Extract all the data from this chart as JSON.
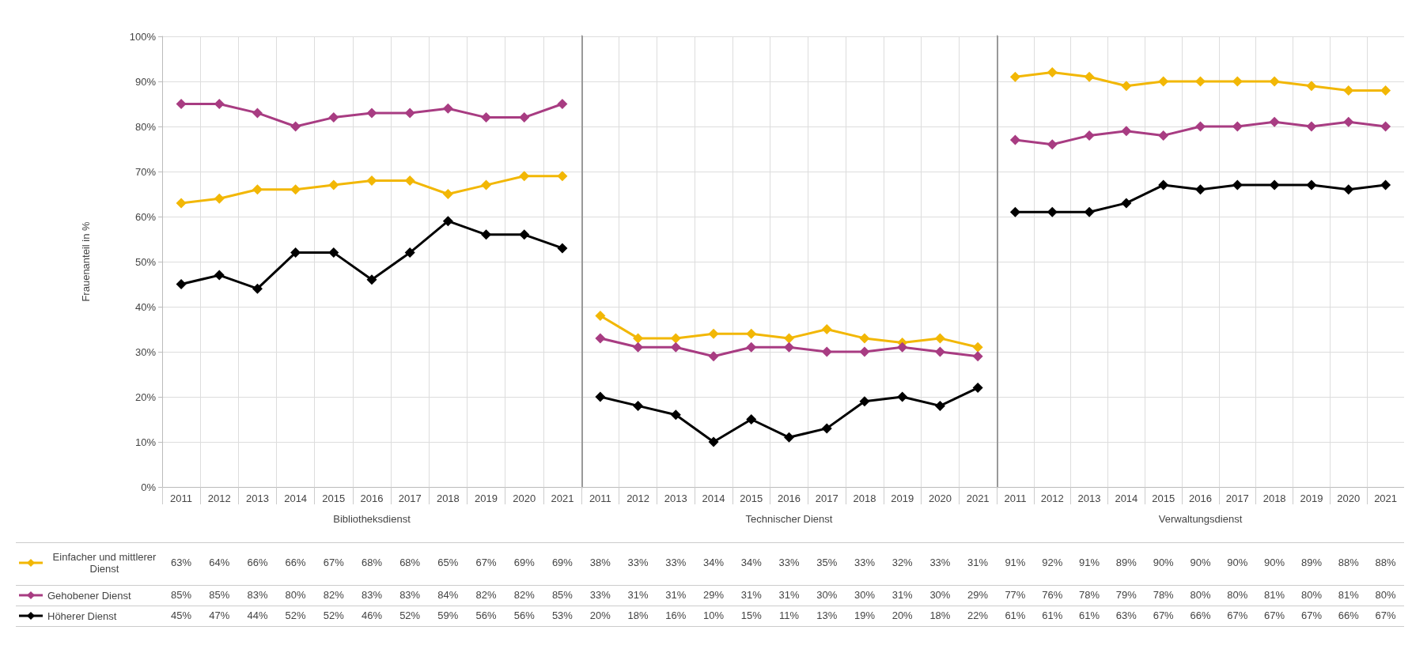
{
  "chart_data": [
    {
      "type": "line",
      "xlabel": "Bibliotheksdienst",
      "ylabel": "Frauenanteil in %",
      "categories": [
        "2011",
        "2012",
        "2013",
        "2014",
        "2015",
        "2016",
        "2017",
        "2018",
        "2019",
        "2020",
        "2021"
      ],
      "ylim": [
        0,
        100
      ],
      "yticks": [
        {
          "value": 0,
          "label": "0%"
        },
        {
          "value": 10,
          "label": "10%"
        },
        {
          "value": 20,
          "label": "20%"
        },
        {
          "value": 30,
          "label": "30%"
        },
        {
          "value": 40,
          "label": "40%"
        },
        {
          "value": 50,
          "label": "50%"
        },
        {
          "value": 60,
          "label": "60%"
        },
        {
          "value": 70,
          "label": "70%"
        },
        {
          "value": 80,
          "label": "80%"
        },
        {
          "value": 90,
          "label": "90%"
        },
        {
          "value": 100,
          "label": "100%"
        }
      ],
      "grid": true,
      "marker": "diamond",
      "legend": "bottom",
      "series": [
        {
          "name": "Einfacher und mittlerer Dienst",
          "color": "#f2b705",
          "values": [
            63,
            64,
            66,
            66,
            67,
            68,
            68,
            65,
            67,
            69,
            69
          ],
          "value_labels": [
            "63%",
            "64%",
            "66%",
            "66%",
            "67%",
            "68%",
            "68%",
            "65%",
            "67%",
            "69%",
            "69%"
          ]
        },
        {
          "name": "Gehobener Dienst",
          "color": "#a83c82",
          "values": [
            85,
            85,
            83,
            80,
            82,
            83,
            83,
            84,
            82,
            82,
            85
          ],
          "value_labels": [
            "85%",
            "85%",
            "83%",
            "80%",
            "82%",
            "83%",
            "83%",
            "84%",
            "82%",
            "82%",
            "85%"
          ]
        },
        {
          "name": "Höherer Dienst",
          "color": "#000000",
          "values": [
            45,
            47,
            44,
            52,
            52,
            46,
            52,
            59,
            56,
            56,
            53
          ],
          "value_labels": [
            "45%",
            "47%",
            "44%",
            "52%",
            "52%",
            "46%",
            "52%",
            "59%",
            "56%",
            "56%",
            "53%"
          ]
        }
      ]
    },
    {
      "type": "line",
      "xlabel": "Technischer Dienst",
      "categories": [
        "2011",
        "2012",
        "2013",
        "2014",
        "2015",
        "2016",
        "2017",
        "2018",
        "2019",
        "2020",
        "2021"
      ],
      "ylim": [
        0,
        100
      ],
      "yticks": [
        0,
        10,
        20,
        30,
        40,
        50,
        60,
        70,
        80,
        90,
        100
      ],
      "tick_labels": "x",
      "grid": true,
      "marker": "diamond",
      "series": [
        {
          "color": "#f2b705",
          "values": [
            38,
            33,
            33,
            34,
            34,
            33,
            35,
            33,
            32,
            33,
            31
          ],
          "value_labels": [
            "38%",
            "33%",
            "33%",
            "34%",
            "34%",
            "33%",
            "35%",
            "33%",
            "32%",
            "33%",
            "31%"
          ]
        },
        {
          "color": "#a83c82",
          "values": [
            33,
            31,
            31,
            29,
            31,
            31,
            30,
            30,
            31,
            30,
            29
          ],
          "value_labels": [
            "33%",
            "31%",
            "31%",
            "29%",
            "31%",
            "31%",
            "30%",
            "30%",
            "31%",
            "30%",
            "29%"
          ]
        },
        {
          "color": "#000000",
          "values": [
            20,
            18,
            16,
            10,
            15,
            11,
            13,
            19,
            20,
            18,
            22
          ],
          "value_labels": [
            "20%",
            "18%",
            "16%",
            "10%",
            "15%",
            "11%",
            "13%",
            "19%",
            "20%",
            "18%",
            "22%"
          ]
        }
      ]
    },
    {
      "type": "line",
      "xlabel": "Verwaltungsdienst",
      "categories": [
        "2011",
        "2012",
        "2013",
        "2014",
        "2015",
        "2016",
        "2017",
        "2018",
        "2019",
        "2020",
        "2021"
      ],
      "ylim": [
        0,
        100
      ],
      "yticks": [
        0,
        10,
        20,
        30,
        40,
        50,
        60,
        70,
        80,
        90,
        100
      ],
      "tick_labels": "x",
      "grid": true,
      "marker": "diamond",
      "series": [
        {
          "color": "#f2b705",
          "values": [
            91,
            92,
            91,
            89,
            90,
            90,
            90,
            90,
            89,
            88,
            88
          ],
          "value_labels": [
            "91%",
            "92%",
            "91%",
            "89%",
            "90%",
            "90%",
            "90%",
            "90%",
            "89%",
            "88%",
            "88%"
          ]
        },
        {
          "color": "#a83c82",
          "values": [
            77,
            76,
            78,
            79,
            78,
            80,
            80,
            81,
            80,
            81,
            80
          ],
          "value_labels": [
            "77%",
            "76%",
            "78%",
            "79%",
            "78%",
            "80%",
            "80%",
            "81%",
            "80%",
            "81%",
            "80%"
          ]
        },
        {
          "color": "#000000",
          "values": [
            61,
            61,
            61,
            63,
            67,
            66,
            67,
            67,
            67,
            66,
            67
          ],
          "value_labels": [
            "61%",
            "61%",
            "61%",
            "63%",
            "67%",
            "66%",
            "67%",
            "67%",
            "67%",
            "66%",
            "67%"
          ]
        }
      ]
    }
  ]
}
